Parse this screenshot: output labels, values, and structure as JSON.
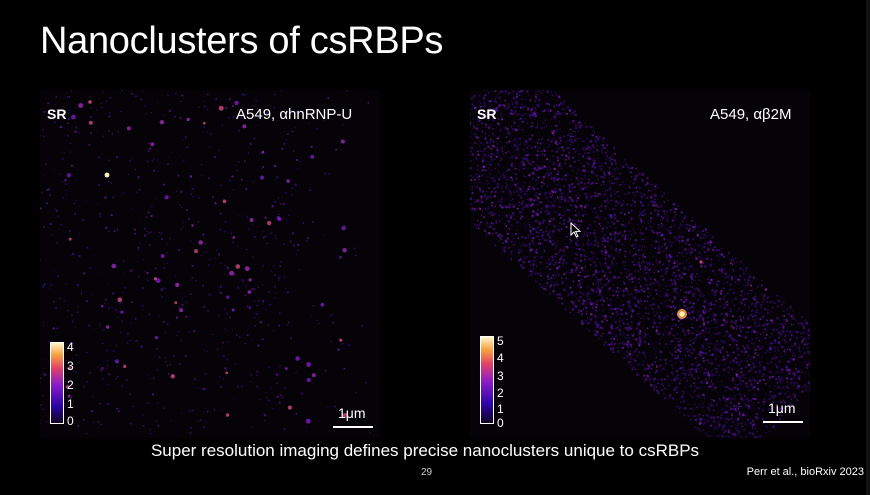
{
  "slide": {
    "title": "Nanoclusters of csRBPs",
    "caption": "Super resolution imaging defines precise nanoclusters unique to csRBPs",
    "page_number": "29",
    "citation": "Perr et al., bioRxiv 2023"
  },
  "panels": {
    "left": {
      "mode_label": "SR",
      "condition": "A549, αhnRNP-U",
      "scale_label": "1μm",
      "colorbar_ticks": [
        "4",
        "3",
        "2",
        "1",
        "0"
      ]
    },
    "right": {
      "mode_label": "SR",
      "condition": "A549, αβ2M",
      "scale_label": "1μm",
      "colorbar_ticks": [
        "5",
        "4",
        "3",
        "2",
        "1",
        "0"
      ]
    }
  },
  "colors": {
    "background": "#000000",
    "colormap": [
      "#120020",
      "#2b06a8",
      "#8a1cc8",
      "#e0406a",
      "#f7a040",
      "#fff4c8"
    ]
  },
  "icons": {
    "cursor": "mouse-pointer-icon"
  }
}
